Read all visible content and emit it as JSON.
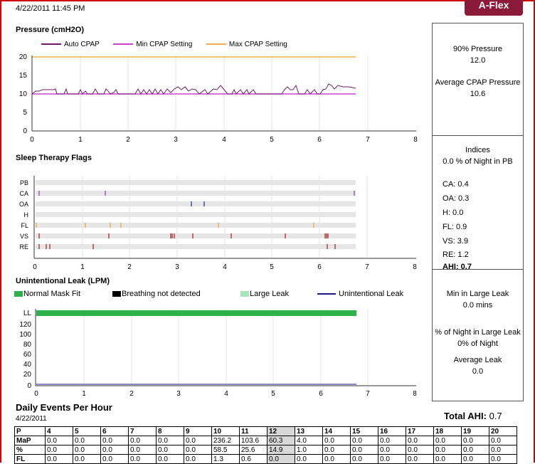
{
  "header": {
    "datetime": "4/22/2011 11:45 PM",
    "logo": "A-Flex"
  },
  "pressure": {
    "title": "Pressure (cmH2O)",
    "legend": [
      "Auto CPAP",
      "Min CPAP Setting",
      "Max CPAP Setting"
    ],
    "colors": {
      "auto": "#6b1f6b",
      "min": "#cc44cc",
      "max": "#f0b050"
    },
    "y_ticks": [
      "20",
      "15",
      "10",
      "5",
      "0"
    ],
    "x_ticks": [
      "0",
      "1",
      "2",
      "3",
      "4",
      "5",
      "6",
      "7",
      "8"
    ],
    "min_setting": 10,
    "max_setting": 20
  },
  "pressure_stats": {
    "p90_label": "90% Pressure",
    "p90_value": "12.0",
    "avg_label": "Average CPAP Pressure",
    "avg_value": "10.6"
  },
  "flags": {
    "title": "Sleep Therapy Flags",
    "rows": [
      "PB",
      "CA",
      "OA",
      "H",
      "FL",
      "VS",
      "RE"
    ],
    "x_ticks": [
      "0",
      "1",
      "2",
      "3",
      "4",
      "5",
      "6",
      "7",
      "8"
    ]
  },
  "indices": {
    "title": "Indices",
    "pb_text": "0.0 % of Night in PB",
    "ca": "CA:  0.4",
    "oa": "OA:  0.3",
    "h": "H:    0.0",
    "fl": "FL:   0.9",
    "vs": "VS:  3.9",
    "re": "RE:  1.2",
    "ahi": "AHI:  0.7"
  },
  "leak": {
    "title": "Unintentional Leak (LPM)",
    "legend": [
      "Normal Mask Fit",
      "Breathing not detected",
      "Large Leak",
      "Unintentional Leak"
    ],
    "colors": {
      "normal": "#2db14a",
      "nodetect": "#000000",
      "large": "#a6e6b8",
      "unint": "#1a1a8c"
    },
    "y_ticks": [
      "LL",
      "120",
      "100",
      "80",
      "60",
      "40",
      "20",
      "0"
    ],
    "x_ticks": [
      "0",
      "1",
      "2",
      "3",
      "4",
      "5",
      "6",
      "7",
      "8"
    ]
  },
  "leak_stats": {
    "min_label": "Min in Large Leak",
    "min_value": "0.0 mins",
    "pct_label": "% of Night in Large Leak",
    "pct_value": "0% of Night",
    "avg_label": "Average Leak",
    "avg_value": "0.0"
  },
  "daily": {
    "title": "Daily Events Per Hour",
    "date": "4/22/2011",
    "total_label": "Total AHI:",
    "total_value": "0.7",
    "headers": [
      "P",
      "4",
      "5",
      "6",
      "7",
      "8",
      "9",
      "10",
      "11",
      "12",
      "13",
      "14",
      "15",
      "16",
      "17",
      "18",
      "19",
      "20"
    ],
    "map_row": [
      "MaP",
      "0.0",
      "0.0",
      "0.0",
      "0.0",
      "0.0",
      "0.0",
      "236.2",
      "103.6",
      "60.3",
      "4.0",
      "0.0",
      "0.0",
      "0.0",
      "0.0",
      "0.0",
      "0.0",
      "0.0"
    ],
    "pct_row": [
      "%",
      "0.0",
      "0.0",
      "0.0",
      "0.0",
      "0.0",
      "0.0",
      "58.5",
      "25.6",
      "14.9",
      "1.0",
      "0.0",
      "0.0",
      "0.0",
      "0.0",
      "0.0",
      "0.0",
      "0.0"
    ],
    "fl_row": [
      "FL",
      "0.0",
      "0.0",
      "0.0",
      "0.0",
      "0.0",
      "0.0",
      "1.3",
      "0.6",
      "0.0",
      "0.0",
      "0.0",
      "0.0",
      "0.0",
      "0.0",
      "0.0",
      "0.0",
      "0.0"
    ]
  }
}
